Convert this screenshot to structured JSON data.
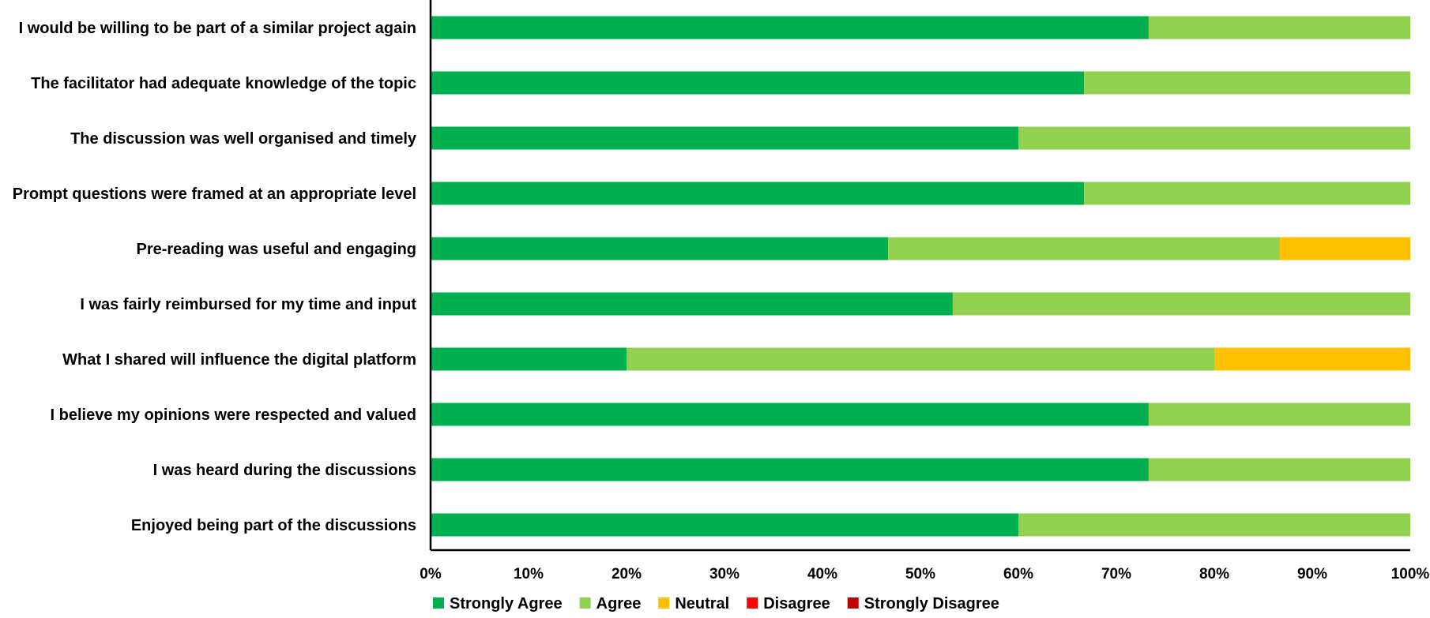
{
  "chart_data": {
    "type": "bar",
    "orientation": "horizontal",
    "stacked": true,
    "percent_scale": true,
    "title": "",
    "xlabel": "",
    "ylabel": "",
    "xlim": [
      0,
      100
    ],
    "x_ticks": [
      "0%",
      "10%",
      "20%",
      "30%",
      "40%",
      "50%",
      "60%",
      "70%",
      "80%",
      "90%",
      "100%"
    ],
    "grid": false,
    "legend_position": "bottom",
    "categories": [
      "I would be willing to be part of a similar project again",
      "The facilitator had adequate knowledge of the topic",
      "The discussion was well organised and timely",
      "Prompt questions were framed at an appropriate level",
      "Pre-reading was useful and engaging",
      "I was fairly reimbursed for my time and input",
      "What I shared will influence the digital platform",
      "I believe my opinions were respected and valued",
      "I was heard during the discussions",
      "Enjoyed being part of the discussions"
    ],
    "series": [
      {
        "name": "Strongly Agree",
        "color": "#00b050",
        "values": [
          73.3,
          66.7,
          60,
          66.7,
          46.7,
          53.3,
          20,
          73.3,
          73.3,
          60
        ]
      },
      {
        "name": "Agree",
        "color": "#92d050",
        "values": [
          26.7,
          33.3,
          40,
          33.3,
          40,
          46.7,
          60,
          26.7,
          26.7,
          40
        ]
      },
      {
        "name": "Neutral",
        "color": "#ffc000",
        "values": [
          0,
          0,
          0,
          0,
          13.3,
          0,
          20,
          0,
          0,
          0
        ]
      },
      {
        "name": "Disagree",
        "color": "#ff0000",
        "values": [
          0,
          0,
          0,
          0,
          0,
          0,
          0,
          0,
          0,
          0
        ]
      },
      {
        "name": "Strongly Disagree",
        "color": "#c00000",
        "values": [
          0,
          0,
          0,
          0,
          0,
          0,
          0,
          0,
          0,
          0
        ]
      }
    ]
  }
}
